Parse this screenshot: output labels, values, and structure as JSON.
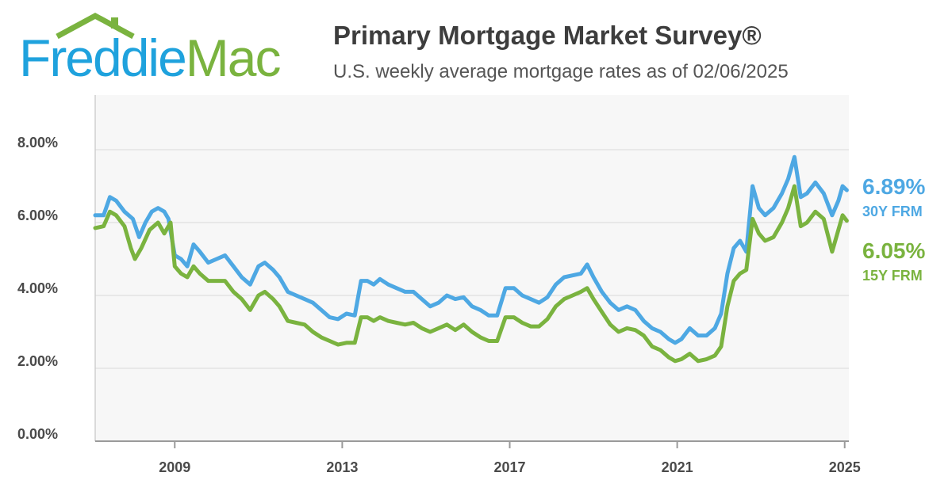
{
  "logo": {
    "text_freddie": "Freddie",
    "text_mac": "Mac",
    "roof_color": "#7ab33f"
  },
  "header": {
    "title": "Primary Mortgage Market Survey®",
    "subtitle": "U.S. weekly average mortgage rates as of 02/06/2025"
  },
  "chart_data": {
    "type": "line",
    "title": "Primary Mortgage Market Survey®",
    "subtitle": "U.S. weekly average mortgage rates as of 02/06/2025",
    "xlabel": "",
    "ylabel": "",
    "xlim": [
      2007.1,
      2025.1
    ],
    "ylim": [
      0,
      9.5
    ],
    "xticks": [
      2009,
      2013,
      2017,
      2021,
      2025
    ],
    "xtick_labels": [
      "2009",
      "2013",
      "2017",
      "2021",
      "2025"
    ],
    "yticks": [
      0,
      2,
      4,
      6,
      8
    ],
    "ytick_labels": [
      "0.00%",
      "2.00%",
      "4.00%",
      "6.00%",
      "8.00%"
    ],
    "grid": "horizontal",
    "series": [
      {
        "name": "30Y FRM",
        "color": "#4ea8e3",
        "current_value": "6.89%",
        "points": [
          [
            2007.1,
            6.2
          ],
          [
            2007.3,
            6.2
          ],
          [
            2007.45,
            6.7
          ],
          [
            2007.6,
            6.6
          ],
          [
            2007.8,
            6.3
          ],
          [
            2008.0,
            6.1
          ],
          [
            2008.15,
            5.6
          ],
          [
            2008.3,
            6.0
          ],
          [
            2008.45,
            6.3
          ],
          [
            2008.6,
            6.4
          ],
          [
            2008.75,
            6.3
          ],
          [
            2008.85,
            6.1
          ],
          [
            2009.0,
            5.1
          ],
          [
            2009.15,
            5.0
          ],
          [
            2009.3,
            4.8
          ],
          [
            2009.45,
            5.4
          ],
          [
            2009.6,
            5.2
          ],
          [
            2009.8,
            4.9
          ],
          [
            2010.0,
            5.0
          ],
          [
            2010.2,
            5.1
          ],
          [
            2010.4,
            4.8
          ],
          [
            2010.6,
            4.5
          ],
          [
            2010.8,
            4.3
          ],
          [
            2011.0,
            4.8
          ],
          [
            2011.15,
            4.9
          ],
          [
            2011.35,
            4.7
          ],
          [
            2011.5,
            4.5
          ],
          [
            2011.7,
            4.1
          ],
          [
            2011.9,
            4.0
          ],
          [
            2012.1,
            3.9
          ],
          [
            2012.3,
            3.8
          ],
          [
            2012.5,
            3.6
          ],
          [
            2012.7,
            3.4
          ],
          [
            2012.9,
            3.35
          ],
          [
            2013.1,
            3.5
          ],
          [
            2013.3,
            3.45
          ],
          [
            2013.45,
            4.4
          ],
          [
            2013.6,
            4.4
          ],
          [
            2013.75,
            4.3
          ],
          [
            2013.9,
            4.45
          ],
          [
            2014.1,
            4.3
          ],
          [
            2014.3,
            4.2
          ],
          [
            2014.5,
            4.1
          ],
          [
            2014.7,
            4.1
          ],
          [
            2014.9,
            3.9
          ],
          [
            2015.1,
            3.7
          ],
          [
            2015.3,
            3.8
          ],
          [
            2015.5,
            4.0
          ],
          [
            2015.7,
            3.9
          ],
          [
            2015.9,
            3.95
          ],
          [
            2016.1,
            3.7
          ],
          [
            2016.3,
            3.6
          ],
          [
            2016.5,
            3.45
          ],
          [
            2016.7,
            3.45
          ],
          [
            2016.9,
            4.2
          ],
          [
            2017.1,
            4.2
          ],
          [
            2017.3,
            4.0
          ],
          [
            2017.5,
            3.9
          ],
          [
            2017.7,
            3.8
          ],
          [
            2017.9,
            3.95
          ],
          [
            2018.1,
            4.3
          ],
          [
            2018.3,
            4.5
          ],
          [
            2018.5,
            4.55
          ],
          [
            2018.7,
            4.6
          ],
          [
            2018.85,
            4.85
          ],
          [
            2019.0,
            4.5
          ],
          [
            2019.2,
            4.1
          ],
          [
            2019.4,
            3.8
          ],
          [
            2019.6,
            3.6
          ],
          [
            2019.8,
            3.7
          ],
          [
            2020.0,
            3.6
          ],
          [
            2020.2,
            3.3
          ],
          [
            2020.4,
            3.1
          ],
          [
            2020.6,
            3.0
          ],
          [
            2020.8,
            2.8
          ],
          [
            2020.95,
            2.7
          ],
          [
            2021.1,
            2.8
          ],
          [
            2021.3,
            3.1
          ],
          [
            2021.5,
            2.9
          ],
          [
            2021.7,
            2.9
          ],
          [
            2021.9,
            3.1
          ],
          [
            2022.05,
            3.5
          ],
          [
            2022.2,
            4.6
          ],
          [
            2022.35,
            5.3
          ],
          [
            2022.5,
            5.5
          ],
          [
            2022.65,
            5.2
          ],
          [
            2022.8,
            7.0
          ],
          [
            2022.95,
            6.4
          ],
          [
            2023.1,
            6.2
          ],
          [
            2023.3,
            6.4
          ],
          [
            2023.5,
            6.8
          ],
          [
            2023.65,
            7.2
          ],
          [
            2023.8,
            7.8
          ],
          [
            2023.95,
            6.7
          ],
          [
            2024.1,
            6.8
          ],
          [
            2024.3,
            7.1
          ],
          [
            2024.5,
            6.8
          ],
          [
            2024.7,
            6.2
          ],
          [
            2024.85,
            6.6
          ],
          [
            2024.95,
            7.0
          ],
          [
            2025.05,
            6.89
          ]
        ]
      },
      {
        "name": "15Y FRM",
        "color": "#7ab33f",
        "current_value": "6.05%",
        "points": [
          [
            2007.1,
            5.85
          ],
          [
            2007.3,
            5.9
          ],
          [
            2007.45,
            6.3
          ],
          [
            2007.6,
            6.2
          ],
          [
            2007.8,
            5.9
          ],
          [
            2007.95,
            5.3
          ],
          [
            2008.05,
            5.0
          ],
          [
            2008.2,
            5.3
          ],
          [
            2008.4,
            5.8
          ],
          [
            2008.6,
            6.0
          ],
          [
            2008.75,
            5.7
          ],
          [
            2008.9,
            6.0
          ],
          [
            2009.0,
            4.8
          ],
          [
            2009.15,
            4.6
          ],
          [
            2009.3,
            4.5
          ],
          [
            2009.45,
            4.8
          ],
          [
            2009.6,
            4.6
          ],
          [
            2009.8,
            4.4
          ],
          [
            2010.0,
            4.4
          ],
          [
            2010.2,
            4.4
          ],
          [
            2010.4,
            4.1
          ],
          [
            2010.6,
            3.9
          ],
          [
            2010.8,
            3.6
          ],
          [
            2011.0,
            4.0
          ],
          [
            2011.15,
            4.1
          ],
          [
            2011.35,
            3.9
          ],
          [
            2011.5,
            3.7
          ],
          [
            2011.7,
            3.3
          ],
          [
            2011.9,
            3.25
          ],
          [
            2012.1,
            3.2
          ],
          [
            2012.3,
            3.0
          ],
          [
            2012.5,
            2.85
          ],
          [
            2012.7,
            2.75
          ],
          [
            2012.9,
            2.65
          ],
          [
            2013.1,
            2.7
          ],
          [
            2013.3,
            2.7
          ],
          [
            2013.45,
            3.4
          ],
          [
            2013.6,
            3.4
          ],
          [
            2013.75,
            3.3
          ],
          [
            2013.9,
            3.4
          ],
          [
            2014.1,
            3.3
          ],
          [
            2014.3,
            3.25
          ],
          [
            2014.5,
            3.2
          ],
          [
            2014.7,
            3.25
          ],
          [
            2014.9,
            3.1
          ],
          [
            2015.1,
            3.0
          ],
          [
            2015.3,
            3.1
          ],
          [
            2015.5,
            3.2
          ],
          [
            2015.7,
            3.05
          ],
          [
            2015.9,
            3.2
          ],
          [
            2016.1,
            3.0
          ],
          [
            2016.3,
            2.85
          ],
          [
            2016.5,
            2.75
          ],
          [
            2016.7,
            2.75
          ],
          [
            2016.9,
            3.4
          ],
          [
            2017.1,
            3.4
          ],
          [
            2017.3,
            3.25
          ],
          [
            2017.5,
            3.15
          ],
          [
            2017.7,
            3.15
          ],
          [
            2017.9,
            3.35
          ],
          [
            2018.1,
            3.7
          ],
          [
            2018.3,
            3.9
          ],
          [
            2018.5,
            4.0
          ],
          [
            2018.7,
            4.1
          ],
          [
            2018.85,
            4.2
          ],
          [
            2019.0,
            3.9
          ],
          [
            2019.2,
            3.55
          ],
          [
            2019.4,
            3.2
          ],
          [
            2019.6,
            3.0
          ],
          [
            2019.8,
            3.1
          ],
          [
            2020.0,
            3.05
          ],
          [
            2020.2,
            2.9
          ],
          [
            2020.4,
            2.6
          ],
          [
            2020.6,
            2.5
          ],
          [
            2020.8,
            2.3
          ],
          [
            2020.95,
            2.2
          ],
          [
            2021.1,
            2.25
          ],
          [
            2021.3,
            2.4
          ],
          [
            2021.5,
            2.2
          ],
          [
            2021.7,
            2.25
          ],
          [
            2021.9,
            2.35
          ],
          [
            2022.05,
            2.6
          ],
          [
            2022.2,
            3.7
          ],
          [
            2022.35,
            4.4
          ],
          [
            2022.5,
            4.6
          ],
          [
            2022.65,
            4.7
          ],
          [
            2022.8,
            6.1
          ],
          [
            2022.95,
            5.7
          ],
          [
            2023.1,
            5.5
          ],
          [
            2023.3,
            5.6
          ],
          [
            2023.5,
            6.0
          ],
          [
            2023.65,
            6.4
          ],
          [
            2023.8,
            7.0
          ],
          [
            2023.95,
            5.9
          ],
          [
            2024.1,
            6.0
          ],
          [
            2024.3,
            6.3
          ],
          [
            2024.5,
            6.1
          ],
          [
            2024.7,
            5.2
          ],
          [
            2024.85,
            5.8
          ],
          [
            2024.95,
            6.2
          ],
          [
            2025.05,
            6.05
          ]
        ]
      }
    ]
  }
}
